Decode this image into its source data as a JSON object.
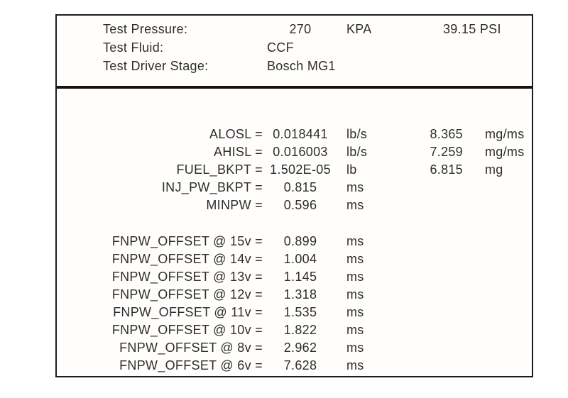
{
  "test_info": {
    "rows": [
      {
        "label": "Test Pressure:",
        "value": "270",
        "unit": "KPA",
        "alt": "39.15 PSI"
      },
      {
        "label": "Test Fluid:",
        "value": "CCF",
        "unit": "",
        "alt": ""
      },
      {
        "label": "Test Driver Stage:",
        "value": "Bosch MG1",
        "unit": "",
        "alt": ""
      }
    ]
  },
  "parameters": [
    {
      "label": "ALOSL =",
      "value": "0.018441",
      "unit": "lb/s",
      "alt_value": "8.365",
      "alt_unit": "mg/ms"
    },
    {
      "label": "AHISL =",
      "value": "0.016003",
      "unit": "lb/s",
      "alt_value": "7.259",
      "alt_unit": "mg/ms"
    },
    {
      "label": "FUEL_BKPT =",
      "value": "1.502E-05",
      "unit": "lb",
      "alt_value": "6.815",
      "alt_unit": "mg"
    },
    {
      "label": "INJ_PW_BKPT =",
      "value": "0.815",
      "unit": "ms",
      "alt_value": "",
      "alt_unit": ""
    },
    {
      "label": "MINPW =",
      "value": "0.596",
      "unit": "ms",
      "alt_value": "",
      "alt_unit": ""
    }
  ],
  "pw_offsets": [
    {
      "label": "FNPW_OFFSET @ 15v =",
      "value": "0.899",
      "unit": "ms"
    },
    {
      "label": "FNPW_OFFSET @ 14v =",
      "value": "1.004",
      "unit": "ms"
    },
    {
      "label": "FNPW_OFFSET @ 13v =",
      "value": "1.145",
      "unit": "ms"
    },
    {
      "label": "FNPW_OFFSET @ 12v =",
      "value": "1.318",
      "unit": "ms"
    },
    {
      "label": "FNPW_OFFSET @ 11v =",
      "value": "1.535",
      "unit": "ms"
    },
    {
      "label": "FNPW_OFFSET @ 10v =",
      "value": "1.822",
      "unit": "ms"
    },
    {
      "label": "FNPW_OFFSET @ 8v =",
      "value": "2.962",
      "unit": "ms"
    },
    {
      "label": "FNPW_OFFSET @ 6v =",
      "value": "7.628",
      "unit": "ms"
    }
  ],
  "colors": {
    "text": "#2d2d2d",
    "border": "#1d1d1d",
    "divider": "#141414",
    "background": "#ffffff"
  }
}
